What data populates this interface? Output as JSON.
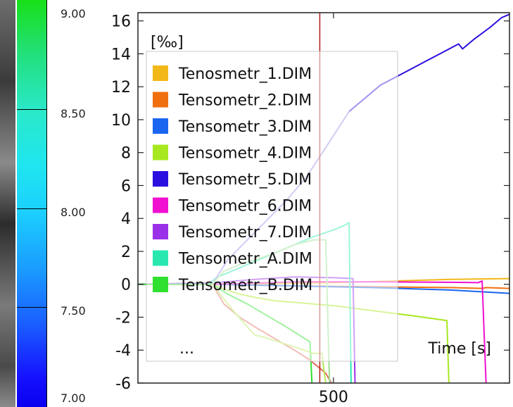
{
  "colorbar": {
    "tick_labels": [
      "9.00",
      "8.50",
      "8.00",
      "7.50",
      "7.00"
    ]
  },
  "chart_data": {
    "type": "line",
    "unit_label": "[‰]",
    "xlabel": "Time [s]",
    "ylabel": "",
    "xlim": [
      0,
      950
    ],
    "ylim": [
      -6,
      16.5
    ],
    "yticks": [
      16,
      14,
      12,
      10,
      8,
      6,
      4,
      2,
      0,
      -2,
      -4,
      -6
    ],
    "xticks": [
      500
    ],
    "cursor_x": 465,
    "legend_position": "top-left",
    "legend_more": "...",
    "grid": false,
    "series": [
      {
        "name": "Tenosmetr_1.DIM",
        "color": "#f2b818",
        "x": [
          0,
          200,
          350,
          500,
          650,
          800,
          950
        ],
        "y": [
          0,
          0,
          0.05,
          0.1,
          0.2,
          0.3,
          0.35
        ]
      },
      {
        "name": "Tensometr_2.DIM",
        "color": "#f07010",
        "x": [
          0,
          200,
          400,
          600,
          800,
          880,
          890,
          950
        ],
        "y": [
          0,
          0,
          -0.1,
          -0.15,
          -0.2,
          -0.25,
          -0.2,
          -0.25
        ]
      },
      {
        "name": "Tensometr_3.DIM",
        "color": "#1a66f0",
        "x": [
          0,
          200,
          400,
          600,
          800,
          950
        ],
        "y": [
          0,
          0,
          -0.1,
          -0.2,
          -0.35,
          -0.55
        ]
      },
      {
        "name": "Tensometr_4.DIM",
        "color": "#a8e820",
        "x": [
          0,
          190,
          220,
          260,
          300,
          350,
          400,
          450,
          500,
          600,
          700,
          790,
          795
        ],
        "y": [
          0,
          0,
          -0.3,
          -0.6,
          -0.8,
          -1.0,
          -1.1,
          -1.2,
          -1.3,
          -1.6,
          -1.9,
          -2.2,
          -6
        ]
      },
      {
        "name": "Tensometr_5.DIM",
        "color": "#2a10e0",
        "x": [
          540,
          580,
          620,
          660,
          700,
          740,
          780,
          820,
          830,
          860,
          900,
          930,
          950
        ],
        "y": [
          10.5,
          11.3,
          12.1,
          12.6,
          13.1,
          13.6,
          14.1,
          14.6,
          14.3,
          14.9,
          15.6,
          16.2,
          16.4
        ]
      },
      {
        "name": "Tensometr_6.DIM",
        "color": "#f010d0",
        "x": [
          0,
          200,
          400,
          600,
          800,
          870,
          880,
          890
        ],
        "y": [
          0,
          0,
          0.15,
          0.15,
          0.12,
          0.1,
          0.2,
          -6
        ]
      },
      {
        "name": "Tensometr_7.DIM",
        "color": "#9a30e8",
        "x": [
          0,
          200,
          300,
          400,
          500,
          550,
          555
        ],
        "y": [
          0,
          0.1,
          0.3,
          0.45,
          0.4,
          0.35,
          -6
        ]
      },
      {
        "name": "Tensometr_A.DIM",
        "color": "#28e8b0",
        "x": [
          180,
          200,
          250,
          300,
          350,
          400,
          450,
          500,
          530,
          540,
          545
        ],
        "y": [
          0,
          0.4,
          0.9,
          1.4,
          1.9,
          2.4,
          2.9,
          3.3,
          3.6,
          3.75,
          -6
        ]
      },
      {
        "name": "Tensometr_B.DIM",
        "color": "#30e030",
        "x": [
          0,
          190,
          230,
          280,
          330,
          380,
          420,
          440,
          445
        ],
        "y": [
          0,
          0,
          -0.6,
          -1.2,
          -1.9,
          -2.6,
          -3.2,
          -3.5,
          -6
        ]
      }
    ],
    "extra_series": [
      {
        "color": "#9b8ee8",
        "x": [
          190,
          230,
          280,
          330,
          380,
          430,
          480,
          540
        ],
        "y": [
          0,
          1.5,
          2.7,
          3.9,
          5.1,
          6.5,
          8.3,
          10.5
        ]
      },
      {
        "color": "#e07060",
        "x": [
          190,
          220,
          260,
          300,
          350,
          400,
          440,
          480,
          490,
          495
        ],
        "y": [
          0,
          -1.2,
          -2.0,
          -2.6,
          -3.3,
          -4.0,
          -4.6,
          -5.4,
          -5.8,
          -6
        ]
      },
      {
        "color": "#9be090",
        "x": [
          190,
          220,
          260,
          300,
          350,
          400,
          450,
          480,
          490
        ],
        "y": [
          0,
          0.8,
          1.2,
          1.5,
          1.9,
          2.4,
          2.7,
          2.7,
          -6
        ]
      },
      {
        "color": "#b8e858",
        "x": [
          190,
          240,
          280,
          300,
          320,
          360,
          400,
          450,
          470,
          480
        ],
        "y": [
          0,
          -1.5,
          -2.6,
          -3.1,
          -3.2,
          -3.5,
          -3.8,
          -4.2,
          -4.2,
          -6
        ]
      }
    ]
  }
}
